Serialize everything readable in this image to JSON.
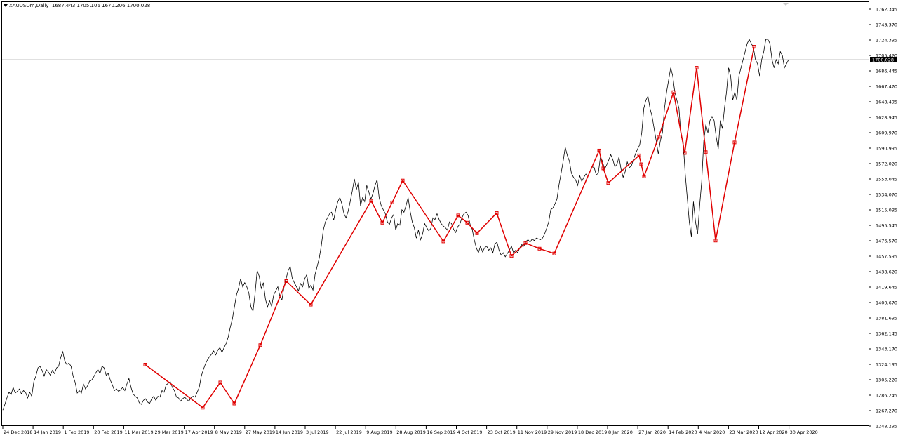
{
  "header": {
    "symbol": "XAUUSDm,Daily",
    "ohlc": "1687.443 1705.106 1670.206 1700.028"
  },
  "current_price": "1700.028",
  "colors": {
    "price_line": "#000000",
    "zigzag": "#e00000",
    "current_price_line": "#c0c0c0",
    "price_tag_bg": "#000000",
    "price_tag_text": "#ffffff"
  },
  "chart_data": {
    "type": "line",
    "title": "XAUUSDm,Daily",
    "xlabel": "",
    "ylabel": "",
    "ylim": [
      1248.295,
      1762.345
    ],
    "grid": false,
    "y_ticks": [
      "1762.345",
      "1743.370",
      "1724.395",
      "1705.420",
      "1686.445",
      "1667.470",
      "1648.495",
      "1628.945",
      "1609.970",
      "1590.995",
      "1572.020",
      "1553.045",
      "1534.070",
      "1515.095",
      "1495.545",
      "1476.570",
      "1457.595",
      "1438.620",
      "1419.645",
      "1400.670",
      "1381.695",
      "1362.145",
      "1343.170",
      "1324.195",
      "1305.220",
      "1286.245",
      "1267.270",
      "1248.295"
    ],
    "x_ticks": [
      "24 Dec 2018",
      "14 Jan 2019",
      "1 Feb 2019",
      "20 Feb 2019",
      "11 Mar 2019",
      "29 Mar 2019",
      "17 Apr 2019",
      "8 May 2019",
      "27 May 2019",
      "14 Jun 2019",
      "3 Jul 2019",
      "22 Jul 2019",
      "9 Aug 2019",
      "28 Aug 2019",
      "16 Sep 2019",
      "4 Oct 2019",
      "23 Oct 2019",
      "11 Nov 2019",
      "29 Nov 2019",
      "18 Dec 2019",
      "8 Jan 2020",
      "27 Jan 2020",
      "14 Feb 2020",
      "4 Mar 2020",
      "23 Mar 2020",
      "12 Apr 2020",
      "30 Apr 2020"
    ],
    "series": [
      {
        "values": [
          1268,
          1275,
          1283,
          1290,
          1287,
          1296,
          1289,
          1291,
          1294,
          1288,
          1292,
          1290,
          1283,
          1290,
          1285,
          1303,
          1310,
          1320,
          1322,
          1317,
          1310,
          1318,
          1315,
          1311,
          1317,
          1313,
          1320,
          1322,
          1333,
          1340,
          1328,
          1324,
          1326,
          1322,
          1310,
          1302,
          1289,
          1292,
          1289,
          1300,
          1294,
          1298,
          1304,
          1305,
          1309,
          1314,
          1318,
          1313,
          1322,
          1320,
          1311,
          1313,
          1305,
          1299,
          1292,
          1294,
          1291,
          1293,
          1296,
          1292,
          1300,
          1307,
          1296,
          1288,
          1285,
          1283,
          1277,
          1275,
          1280,
          1282,
          1278,
          1276,
          1282,
          1285,
          1280,
          1285,
          1284,
          1292,
          1290,
          1299,
          1301,
          1303,
          1296,
          1292,
          1284,
          1283,
          1279,
          1282,
          1284,
          1281,
          1279,
          1283,
          1285,
          1284,
          1290,
          1296,
          1310,
          1318,
          1325,
          1330,
          1334,
          1337,
          1341,
          1336,
          1342,
          1345,
          1339,
          1345,
          1350,
          1358,
          1370,
          1380,
          1395,
          1410,
          1418,
          1430,
          1420,
          1425,
          1420,
          1412,
          1395,
          1390,
          1412,
          1440,
          1433,
          1418,
          1425,
          1405,
          1395,
          1403,
          1396,
          1410,
          1415,
          1420,
          1408,
          1404,
          1420,
          1430,
          1440,
          1445,
          1430,
          1425,
          1420,
          1415,
          1424,
          1420,
          1430,
          1435,
          1418,
          1422,
          1416,
          1435,
          1445,
          1455,
          1470,
          1490,
          1500,
          1505,
          1510,
          1512,
          1502,
          1515,
          1525,
          1530,
          1522,
          1510,
          1505,
          1513,
          1525,
          1538,
          1553,
          1540,
          1549,
          1520,
          1530,
          1525,
          1545,
          1537,
          1528,
          1535,
          1545,
          1552,
          1530,
          1520,
          1515,
          1510,
          1500,
          1497,
          1505,
          1509,
          1490,
          1498,
          1496,
          1515,
          1512,
          1520,
          1530,
          1513,
          1500,
          1493,
          1480,
          1490,
          1478,
          1485,
          1498,
          1493,
          1489,
          1492,
          1505,
          1503,
          1510,
          1503,
          1498,
          1495,
          1493,
          1490,
          1500,
          1498,
          1491,
          1487,
          1494,
          1497,
          1505,
          1510,
          1512,
          1508,
          1497,
          1491,
          1478,
          1468,
          1462,
          1470,
          1463,
          1468,
          1470,
          1465,
          1468,
          1462,
          1473,
          1475,
          1465,
          1459,
          1462,
          1457,
          1461,
          1465,
          1470,
          1462,
          1465,
          1462,
          1468,
          1472,
          1470,
          1476,
          1478,
          1475,
          1479,
          1477,
          1480,
          1479,
          1478,
          1480,
          1485,
          1492,
          1500,
          1515,
          1517,
          1522,
          1528,
          1546,
          1560,
          1575,
          1592,
          1582,
          1575,
          1560,
          1555,
          1552,
          1545,
          1557,
          1550,
          1555,
          1559,
          1557,
          1562,
          1568,
          1567,
          1558,
          1560,
          1580,
          1575,
          1565,
          1570,
          1576,
          1583,
          1577,
          1568,
          1571,
          1580,
          1565,
          1555,
          1562,
          1574,
          1567,
          1569,
          1577,
          1584,
          1590,
          1595,
          1610,
          1640,
          1650,
          1655,
          1640,
          1630,
          1615,
          1600,
          1584,
          1600,
          1610,
          1640,
          1660,
          1675,
          1690,
          1680,
          1660,
          1650,
          1640,
          1605,
          1600,
          1560,
          1530,
          1500,
          1482,
          1525,
          1500,
          1485,
          1520,
          1550,
          1600,
          1620,
          1610,
          1625,
          1630,
          1625,
          1605,
          1590,
          1625,
          1615,
          1640,
          1660,
          1690,
          1680,
          1650,
          1660,
          1650,
          1680,
          1690,
          1700,
          1710,
          1720,
          1725,
          1720,
          1715,
          1700,
          1695,
          1680,
          1700,
          1710,
          1725,
          1725,
          1720,
          1700,
          1690,
          1700,
          1695,
          1710,
          1705,
          1690,
          1695,
          1700
        ]
      },
      {
        "values": [
          1324,
          1271,
          1302,
          1276,
          1348,
          1427,
          1398,
          1526,
          1499,
          1524,
          1551,
          1476,
          1508,
          1499,
          1486,
          1511,
          1458,
          1474,
          1467,
          1461,
          1588,
          1566,
          1548,
          1582,
          1571,
          1556,
          1605,
          1660,
          1585,
          1690,
          1586,
          1477,
          1598,
          1716
        ]
      }
    ]
  }
}
